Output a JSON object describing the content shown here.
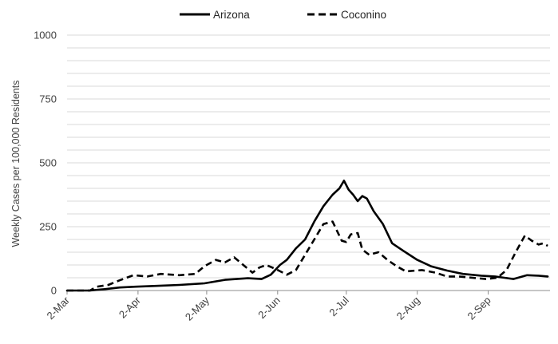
{
  "chart_data": {
    "type": "line",
    "title": "",
    "xlabel": "",
    "ylabel": "Weekly Cases per 100,000 Residents",
    "ylim": [
      0,
      1000
    ],
    "yticks": [
      0,
      250,
      500,
      750,
      1000
    ],
    "xticks": [
      "2-Mar",
      "2-Apr",
      "2-May",
      "2-Jun",
      "2-Jul",
      "2-Aug",
      "2-Sep"
    ],
    "grid": true,
    "legend_position": "top",
    "series": [
      {
        "name": "Arizona",
        "style": "solid",
        "color": "#000000",
        "x": [
          "2020-03-02",
          "2020-03-12",
          "2020-03-18",
          "2020-03-25",
          "2020-04-01",
          "2020-04-10",
          "2020-04-20",
          "2020-05-01",
          "2020-05-10",
          "2020-05-20",
          "2020-05-26",
          "2020-05-30",
          "2020-06-03",
          "2020-06-06",
          "2020-06-10",
          "2020-06-14",
          "2020-06-18",
          "2020-06-22",
          "2020-06-26",
          "2020-06-29",
          "2020-07-01",
          "2020-07-03",
          "2020-07-05",
          "2020-07-07",
          "2020-07-09",
          "2020-07-11",
          "2020-07-14",
          "2020-07-18",
          "2020-07-22",
          "2020-07-27",
          "2020-08-02",
          "2020-08-08",
          "2020-08-15",
          "2020-08-22",
          "2020-08-30",
          "2020-09-05",
          "2020-09-09",
          "2020-09-13",
          "2020-09-19",
          "2020-09-24",
          "2020-09-28"
        ],
        "values": [
          0,
          0,
          5,
          12,
          15,
          18,
          22,
          28,
          42,
          48,
          45,
          62,
          100,
          120,
          165,
          200,
          270,
          330,
          375,
          400,
          430,
          395,
          375,
          350,
          370,
          360,
          310,
          260,
          185,
          155,
          120,
          95,
          78,
          65,
          58,
          55,
          50,
          45,
          60,
          58,
          55
        ]
      },
      {
        "name": "Coconino",
        "style": "dashed",
        "color": "#000000",
        "x": [
          "2020-03-02",
          "2020-03-12",
          "2020-03-15",
          "2020-03-20",
          "2020-03-25",
          "2020-03-31",
          "2020-04-06",
          "2020-04-12",
          "2020-04-20",
          "2020-04-27",
          "2020-05-01",
          "2020-05-06",
          "2020-05-10",
          "2020-05-14",
          "2020-05-18",
          "2020-05-22",
          "2020-05-25",
          "2020-05-28",
          "2020-06-01",
          "2020-06-06",
          "2020-06-10",
          "2020-06-14",
          "2020-06-18",
          "2020-06-22",
          "2020-06-26",
          "2020-06-30",
          "2020-07-02",
          "2020-07-04",
          "2020-07-07",
          "2020-07-09",
          "2020-07-12",
          "2020-07-16",
          "2020-07-20",
          "2020-07-24",
          "2020-07-28",
          "2020-08-04",
          "2020-08-10",
          "2020-08-15",
          "2020-08-20",
          "2020-08-26",
          "2020-09-01",
          "2020-09-06",
          "2020-09-10",
          "2020-09-14",
          "2020-09-18",
          "2020-09-21",
          "2020-09-24",
          "2020-09-26",
          "2020-09-28"
        ],
        "values": [
          0,
          0,
          15,
          22,
          40,
          60,
          55,
          65,
          60,
          65,
          95,
          120,
          110,
          130,
          100,
          70,
          90,
          100,
          85,
          62,
          80,
          140,
          200,
          260,
          270,
          195,
          190,
          220,
          225,
          160,
          140,
          150,
          120,
          95,
          75,
          80,
          70,
          55,
          55,
          50,
          45,
          50,
          80,
          150,
          215,
          195,
          180,
          185,
          175
        ]
      }
    ]
  }
}
